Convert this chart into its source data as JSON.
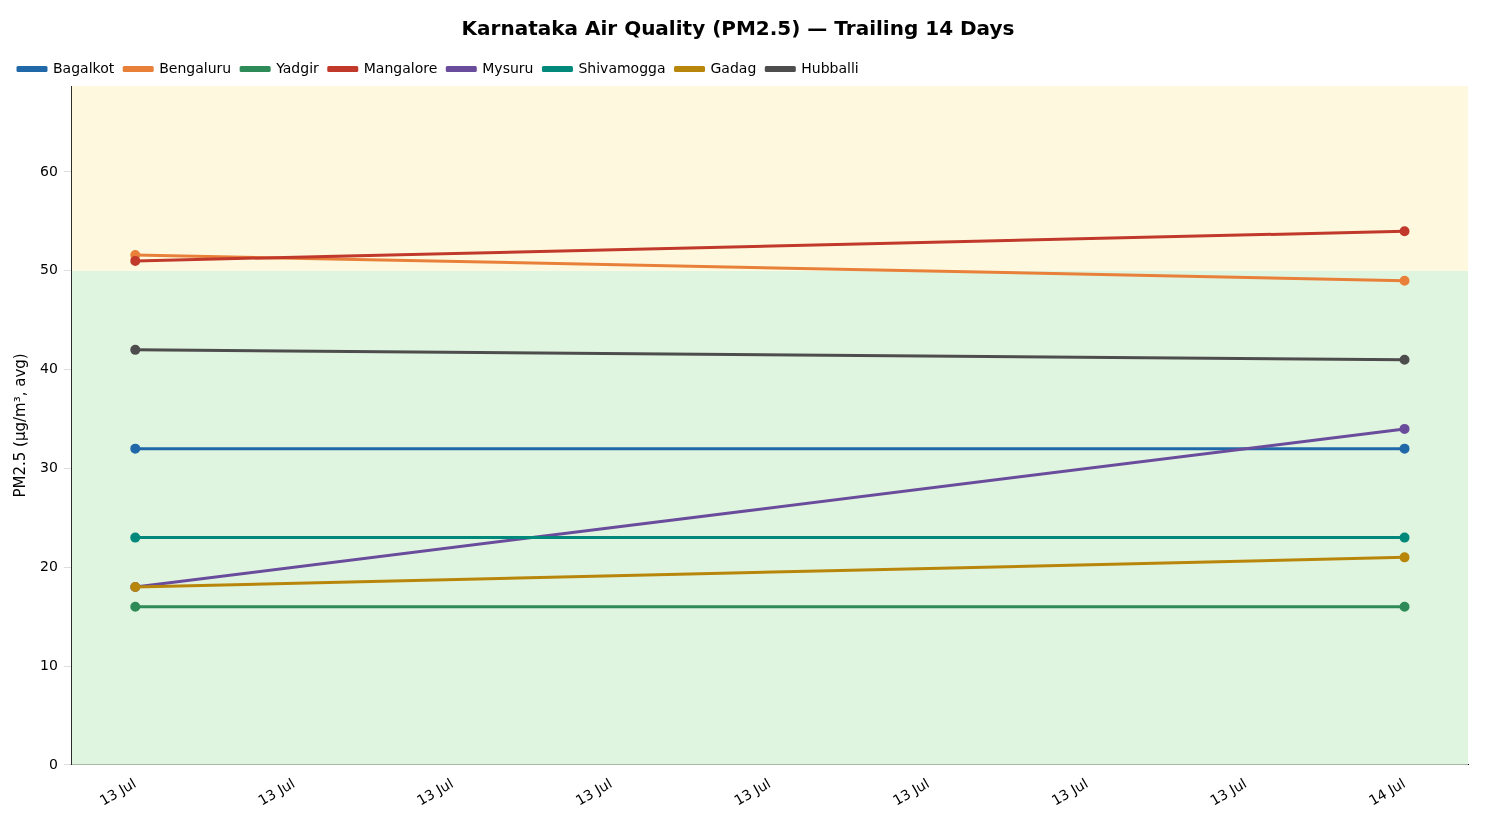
{
  "chart_data": {
    "type": "line",
    "title": "Karnataka Air Quality (PM2.5) — Trailing 14 Days",
    "ylabel": "PM2.5 (µg/m³, avg)",
    "x": [
      "--07-13",
      "--07-14"
    ],
    "series": [
      {
        "name": "Bagalkot",
        "color": "#2068a8",
        "values": [
          32,
          32
        ]
      },
      {
        "name": "Bengaluru",
        "color": "#e8803a",
        "values": [
          51.6,
          49
        ]
      },
      {
        "name": "Yadgir",
        "color": "#2e8b57",
        "values": [
          16,
          16
        ]
      },
      {
        "name": "Mangalore",
        "color": "#c0392b",
        "values": [
          51,
          54
        ]
      },
      {
        "name": "Mysuru",
        "color": "#6a4c9c",
        "values": [
          18,
          34
        ]
      },
      {
        "name": "Shivamogga",
        "color": "#00897b",
        "values": [
          23,
          23
        ]
      },
      {
        "name": "Gadag",
        "color": "#b8860b",
        "values": [
          18,
          21
        ]
      },
      {
        "name": "Hubballi",
        "color": "#4d4d4d",
        "values": [
          42,
          41
        ]
      }
    ],
    "xlim": [
      "--07-12T22:48",
      "--07-14T01:12"
    ],
    "xticks": [
      {
        "value": "--07-13",
        "label": "13 Jul"
      },
      {
        "value": "--07-13T03:00",
        "label": "13 Jul"
      },
      {
        "value": "--07-13T06:00",
        "label": "13 Jul"
      },
      {
        "value": "--07-13T09:00",
        "label": "13 Jul"
      },
      {
        "value": "--07-13T12:00",
        "label": "13 Jul"
      },
      {
        "value": "--07-13T15:00",
        "label": "13 Jul"
      },
      {
        "value": "--07-13T18:00",
        "label": "13 Jul"
      },
      {
        "value": "--07-13T21:00",
        "label": "13 Jul"
      },
      {
        "value": "--07-14",
        "label": "14 Jul"
      }
    ],
    "ylim": [
      0,
      68.7
    ],
    "yticks": [
      0,
      10,
      20,
      30,
      40,
      50,
      60
    ],
    "bands": [
      {
        "axis": "y",
        "from": 0,
        "to": 50,
        "color": "#e0f5df"
      },
      {
        "axis": "y",
        "from": 50,
        "to": 68.7,
        "color": "#fef9de"
      }
    ],
    "grid": false,
    "legend": "top left",
    "marker": "circle",
    "line_style": "solid"
  }
}
